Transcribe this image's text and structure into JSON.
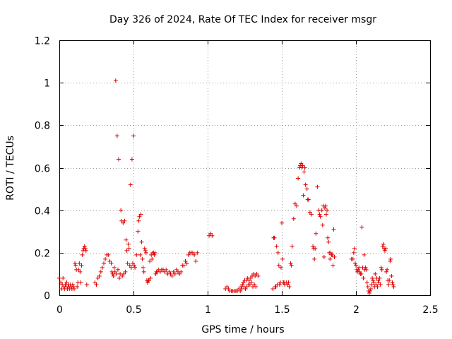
{
  "chart_data": {
    "type": "scatter",
    "title": "Day 326 of 2024, Rate Of TEC Index for receiver msgr",
    "xlabel": "GPS time / hours",
    "ylabel": "ROTI / TECUs",
    "xlim": [
      0,
      2.5
    ],
    "ylim": [
      0,
      1.2
    ],
    "xticks": [
      0,
      0.5,
      1,
      1.5,
      2,
      2.5
    ],
    "xtick_labels": [
      "0",
      "0.5",
      "1",
      "1.5",
      "2",
      "2.5"
    ],
    "yticks": [
      0,
      0.2,
      0.4,
      0.6,
      0.8,
      1.0,
      1.2
    ],
    "ytick_labels": [
      "0",
      "0.2",
      "0.4",
      "0.6",
      "0.8",
      "1",
      "1.2"
    ],
    "grid": true,
    "marker": "+",
    "color": "#e00000",
    "series": [
      {
        "name": "ROTI",
        "points": [
          [
            0.0,
            0.08
          ],
          [
            0.01,
            0.06
          ],
          [
            0.015,
            0.03
          ],
          [
            0.02,
            0.05
          ],
          [
            0.025,
            0.08
          ],
          [
            0.03,
            0.04
          ],
          [
            0.035,
            0.03
          ],
          [
            0.04,
            0.05
          ],
          [
            0.045,
            0.04
          ],
          [
            0.05,
            0.06
          ],
          [
            0.055,
            0.03
          ],
          [
            0.06,
            0.05
          ],
          [
            0.065,
            0.04
          ],
          [
            0.07,
            0.03
          ],
          [
            0.075,
            0.05
          ],
          [
            0.08,
            0.04
          ],
          [
            0.085,
            0.03
          ],
          [
            0.09,
            0.05
          ],
          [
            0.095,
            0.04
          ],
          [
            0.1,
            0.03
          ],
          [
            0.105,
            0.15
          ],
          [
            0.11,
            0.14
          ],
          [
            0.115,
            0.12
          ],
          [
            0.12,
            0.04
          ],
          [
            0.125,
            0.06
          ],
          [
            0.13,
            0.12
          ],
          [
            0.135,
            0.15
          ],
          [
            0.14,
            0.11
          ],
          [
            0.145,
            0.06
          ],
          [
            0.15,
            0.14
          ],
          [
            0.155,
            0.19
          ],
          [
            0.16,
            0.21
          ],
          [
            0.165,
            0.22
          ],
          [
            0.17,
            0.23
          ],
          [
            0.175,
            0.22
          ],
          [
            0.18,
            0.21
          ],
          [
            0.185,
            0.05
          ],
          [
            0.24,
            0.06
          ],
          [
            0.25,
            0.05
          ],
          [
            0.26,
            0.08
          ],
          [
            0.27,
            0.09
          ],
          [
            0.28,
            0.11
          ],
          [
            0.29,
            0.13
          ],
          [
            0.3,
            0.15
          ],
          [
            0.31,
            0.17
          ],
          [
            0.32,
            0.19
          ],
          [
            0.33,
            0.19
          ],
          [
            0.34,
            0.16
          ],
          [
            0.35,
            0.15
          ],
          [
            0.355,
            0.11
          ],
          [
            0.36,
            0.1
          ],
          [
            0.365,
            0.09
          ],
          [
            0.37,
            0.13
          ],
          [
            0.375,
            0.11
          ],
          [
            0.38,
            1.01
          ],
          [
            0.385,
            0.1
          ],
          [
            0.39,
            0.75
          ],
          [
            0.395,
            0.12
          ],
          [
            0.4,
            0.64
          ],
          [
            0.405,
            0.08
          ],
          [
            0.41,
            0.1
          ],
          [
            0.415,
            0.4
          ],
          [
            0.42,
            0.35
          ],
          [
            0.425,
            0.09
          ],
          [
            0.43,
            0.34
          ],
          [
            0.435,
            0.1
          ],
          [
            0.44,
            0.35
          ],
          [
            0.445,
            0.11
          ],
          [
            0.45,
            0.26
          ],
          [
            0.455,
            0.21
          ],
          [
            0.46,
            0.15
          ],
          [
            0.465,
            0.24
          ],
          [
            0.47,
            0.22
          ],
          [
            0.475,
            0.14
          ],
          [
            0.48,
            0.52
          ],
          [
            0.485,
            0.13
          ],
          [
            0.49,
            0.64
          ],
          [
            0.495,
            0.15
          ],
          [
            0.5,
            0.75
          ],
          [
            0.505,
            0.14
          ],
          [
            0.51,
            0.13
          ],
          [
            0.52,
            0.19
          ],
          [
            0.53,
            0.3
          ],
          [
            0.535,
            0.35
          ],
          [
            0.54,
            0.37
          ],
          [
            0.545,
            0.19
          ],
          [
            0.55,
            0.38
          ],
          [
            0.555,
            0.25
          ],
          [
            0.56,
            0.17
          ],
          [
            0.565,
            0.13
          ],
          [
            0.57,
            0.11
          ],
          [
            0.575,
            0.22
          ],
          [
            0.58,
            0.21
          ],
          [
            0.585,
            0.2
          ],
          [
            0.59,
            0.07
          ],
          [
            0.595,
            0.06
          ],
          [
            0.6,
            0.07
          ],
          [
            0.605,
            0.07
          ],
          [
            0.61,
            0.16
          ],
          [
            0.615,
            0.08
          ],
          [
            0.62,
            0.19
          ],
          [
            0.625,
            0.17
          ],
          [
            0.63,
            0.2
          ],
          [
            0.635,
            0.2
          ],
          [
            0.64,
            0.19
          ],
          [
            0.645,
            0.2
          ],
          [
            0.65,
            0.1
          ],
          [
            0.655,
            0.11
          ],
          [
            0.66,
            0.11
          ],
          [
            0.67,
            0.12
          ],
          [
            0.68,
            0.11
          ],
          [
            0.69,
            0.12
          ],
          [
            0.7,
            0.12
          ],
          [
            0.71,
            0.11
          ],
          [
            0.72,
            0.12
          ],
          [
            0.73,
            0.1
          ],
          [
            0.74,
            0.11
          ],
          [
            0.75,
            0.1
          ],
          [
            0.76,
            0.09
          ],
          [
            0.77,
            0.11
          ],
          [
            0.78,
            0.1
          ],
          [
            0.79,
            0.12
          ],
          [
            0.8,
            0.11
          ],
          [
            0.81,
            0.1
          ],
          [
            0.82,
            0.11
          ],
          [
            0.83,
            0.14
          ],
          [
            0.84,
            0.14
          ],
          [
            0.85,
            0.16
          ],
          [
            0.86,
            0.15
          ],
          [
            0.87,
            0.19
          ],
          [
            0.88,
            0.2
          ],
          [
            0.89,
            0.2
          ],
          [
            0.9,
            0.2
          ],
          [
            0.91,
            0.19
          ],
          [
            0.92,
            0.16
          ],
          [
            0.93,
            0.2
          ],
          [
            1.01,
            0.28
          ],
          [
            1.02,
            0.29
          ],
          [
            1.03,
            0.28
          ],
          [
            1.12,
            0.03
          ],
          [
            1.13,
            0.04
          ],
          [
            1.14,
            0.03
          ],
          [
            1.15,
            0.02
          ],
          [
            1.16,
            0.02
          ],
          [
            1.17,
            0.02
          ],
          [
            1.18,
            0.02
          ],
          [
            1.19,
            0.02
          ],
          [
            1.2,
            0.02
          ],
          [
            1.21,
            0.03
          ],
          [
            1.22,
            0.02
          ],
          [
            1.225,
            0.04
          ],
          [
            1.23,
            0.03
          ],
          [
            1.235,
            0.05
          ],
          [
            1.24,
            0.06
          ],
          [
            1.245,
            0.04
          ],
          [
            1.25,
            0.07
          ],
          [
            1.255,
            0.03
          ],
          [
            1.26,
            0.07
          ],
          [
            1.265,
            0.04
          ],
          [
            1.27,
            0.08
          ],
          [
            1.275,
            0.05
          ],
          [
            1.28,
            0.07
          ],
          [
            1.285,
            0.05
          ],
          [
            1.29,
            0.08
          ],
          [
            1.295,
            0.06
          ],
          [
            1.3,
            0.09
          ],
          [
            1.305,
            0.04
          ],
          [
            1.31,
            0.1
          ],
          [
            1.315,
            0.05
          ],
          [
            1.32,
            0.09
          ],
          [
            1.325,
            0.04
          ],
          [
            1.33,
            0.1
          ],
          [
            1.34,
            0.09
          ],
          [
            1.44,
            0.03
          ],
          [
            1.445,
            0.27
          ],
          [
            1.45,
            0.27
          ],
          [
            1.455,
            0.04
          ],
          [
            1.46,
            0.04
          ],
          [
            1.465,
            0.23
          ],
          [
            1.47,
            0.05
          ],
          [
            1.475,
            0.2
          ],
          [
            1.48,
            0.14
          ],
          [
            1.485,
            0.05
          ],
          [
            1.49,
            0.06
          ],
          [
            1.495,
            0.13
          ],
          [
            1.5,
            0.34
          ],
          [
            1.505,
            0.17
          ],
          [
            1.51,
            0.06
          ],
          [
            1.515,
            0.06
          ],
          [
            1.52,
            0.05
          ],
          [
            1.53,
            0.06
          ],
          [
            1.54,
            0.05
          ],
          [
            1.545,
            0.06
          ],
          [
            1.55,
            0.04
          ],
          [
            1.56,
            0.15
          ],
          [
            1.565,
            0.14
          ],
          [
            1.57,
            0.23
          ],
          [
            1.58,
            0.36
          ],
          [
            1.59,
            0.43
          ],
          [
            1.6,
            0.42
          ],
          [
            1.61,
            0.55
          ],
          [
            1.62,
            0.6
          ],
          [
            1.625,
            0.61
          ],
          [
            1.63,
            0.62
          ],
          [
            1.635,
            0.6
          ],
          [
            1.64,
            0.61
          ],
          [
            1.645,
            0.47
          ],
          [
            1.65,
            0.58
          ],
          [
            1.655,
            0.6
          ],
          [
            1.66,
            0.52
          ],
          [
            1.67,
            0.5
          ],
          [
            1.675,
            0.45
          ],
          [
            1.68,
            0.45
          ],
          [
            1.69,
            0.39
          ],
          [
            1.7,
            0.38
          ],
          [
            1.71,
            0.23
          ],
          [
            1.715,
            0.22
          ],
          [
            1.72,
            0.17
          ],
          [
            1.725,
            0.22
          ],
          [
            1.73,
            0.29
          ],
          [
            1.74,
            0.51
          ],
          [
            1.75,
            0.4
          ],
          [
            1.755,
            0.38
          ],
          [
            1.76,
            0.37
          ],
          [
            1.77,
            0.4
          ],
          [
            1.775,
            0.33
          ],
          [
            1.78,
            0.42
          ],
          [
            1.785,
            0.18
          ],
          [
            1.79,
            0.41
          ],
          [
            1.795,
            0.42
          ],
          [
            1.8,
            0.38
          ],
          [
            1.805,
            0.4
          ],
          [
            1.81,
            0.27
          ],
          [
            1.815,
            0.25
          ],
          [
            1.82,
            0.2
          ],
          [
            1.825,
            0.17
          ],
          [
            1.83,
            0.2
          ],
          [
            1.835,
            0.19
          ],
          [
            1.84,
            0.19
          ],
          [
            1.845,
            0.14
          ],
          [
            1.85,
            0.31
          ],
          [
            1.855,
            0.18
          ],
          [
            1.97,
            0.17
          ],
          [
            1.98,
            0.17
          ],
          [
            1.985,
            0.2
          ],
          [
            1.99,
            0.22
          ],
          [
            1.995,
            0.15
          ],
          [
            2.0,
            0.14
          ],
          [
            2.005,
            0.12
          ],
          [
            2.01,
            0.11
          ],
          [
            2.015,
            0.12
          ],
          [
            2.02,
            0.13
          ],
          [
            2.025,
            0.11
          ],
          [
            2.03,
            0.1
          ],
          [
            2.035,
            0.1
          ],
          [
            2.04,
            0.32
          ],
          [
            2.045,
            0.13
          ],
          [
            2.05,
            0.08
          ],
          [
            2.055,
            0.19
          ],
          [
            2.06,
            0.12
          ],
          [
            2.065,
            0.13
          ],
          [
            2.07,
            0.12
          ],
          [
            2.075,
            0.06
          ],
          [
            2.08,
            0.04
          ],
          [
            2.085,
            0.02
          ],
          [
            2.09,
            0.01
          ],
          [
            2.095,
            0.02
          ],
          [
            2.1,
            0.03
          ],
          [
            2.105,
            0.05
          ],
          [
            2.11,
            0.08
          ],
          [
            2.115,
            0.07
          ],
          [
            2.12,
            0.06
          ],
          [
            2.125,
            0.04
          ],
          [
            2.13,
            0.1
          ],
          [
            2.135,
            0.05
          ],
          [
            2.14,
            0.08
          ],
          [
            2.145,
            0.04
          ],
          [
            2.15,
            0.07
          ],
          [
            2.155,
            0.06
          ],
          [
            2.16,
            0.08
          ],
          [
            2.165,
            0.05
          ],
          [
            2.17,
            0.13
          ],
          [
            2.175,
            0.12
          ],
          [
            2.18,
            0.23
          ],
          [
            2.185,
            0.24
          ],
          [
            2.19,
            0.22
          ],
          [
            2.195,
            0.21
          ],
          [
            2.2,
            0.22
          ],
          [
            2.205,
            0.11
          ],
          [
            2.21,
            0.12
          ],
          [
            2.215,
            0.07
          ],
          [
            2.22,
            0.05
          ],
          [
            2.225,
            0.07
          ],
          [
            2.23,
            0.16
          ],
          [
            2.235,
            0.17
          ],
          [
            2.24,
            0.09
          ],
          [
            2.245,
            0.06
          ],
          [
            2.25,
            0.05
          ],
          [
            2.255,
            0.04
          ]
        ]
      }
    ]
  }
}
